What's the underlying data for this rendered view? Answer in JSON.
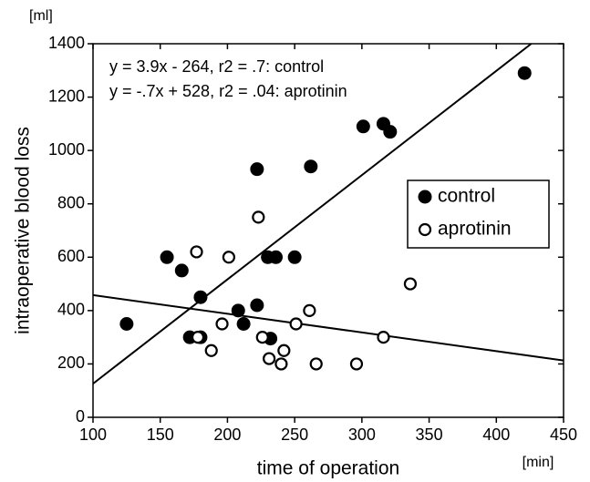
{
  "chart_data": {
    "type": "scatter",
    "xlabel": "time of operation",
    "ylabel": "intraoperative blood loss",
    "xunit": "[min]",
    "yunit": "[ml]",
    "annotations": [
      "y = 3.9x - 264, r2 = .7: control",
      "y = -.7x + 528, r2 = .04: aprotinin"
    ],
    "xlim": [
      100,
      450
    ],
    "ylim": [
      0,
      1400
    ],
    "xticks": [
      100,
      150,
      200,
      250,
      300,
      350,
      400,
      450
    ],
    "yticks": [
      0,
      200,
      400,
      600,
      800,
      1000,
      1200,
      1400
    ],
    "legend": "right",
    "series": [
      {
        "name": "control",
        "color": "#000000",
        "marker": "filled",
        "x": [
          125,
          155,
          166,
          180,
          172,
          180,
          208,
          212,
          222,
          222,
          230,
          236,
          232,
          250,
          262,
          301,
          316,
          321,
          421
        ],
        "y": [
          350,
          600,
          550,
          450,
          300,
          300,
          400,
          350,
          420,
          930,
          600,
          600,
          295,
          600,
          940,
          1090,
          1100,
          1070,
          1290
        ]
      },
      {
        "name": "aprotinin",
        "color": "#000000",
        "marker": "open",
        "x": [
          177,
          178,
          188,
          201,
          196,
          223,
          226,
          231,
          240,
          242,
          251,
          261,
          266,
          296,
          316,
          336
        ],
        "y": [
          620,
          300,
          250,
          600,
          350,
          750,
          300,
          220,
          200,
          250,
          350,
          400,
          200,
          200,
          300,
          500
        ]
      }
    ],
    "fit_lines": [
      {
        "x": [
          100,
          426
        ],
        "y": [
          126,
          1400
        ]
      },
      {
        "x": [
          100,
          450
        ],
        "y": [
          458,
          213
        ]
      }
    ]
  }
}
